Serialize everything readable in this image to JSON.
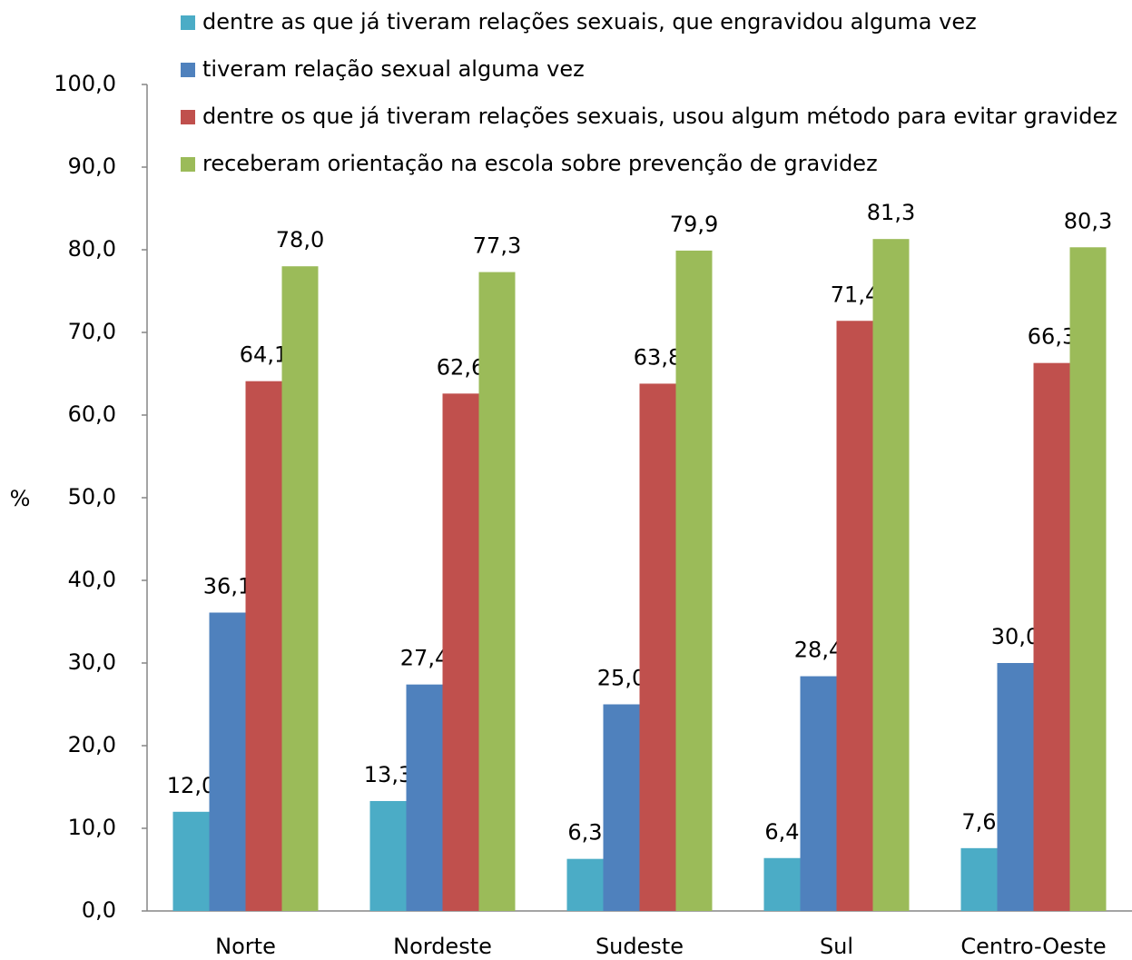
{
  "chart_data": {
    "type": "bar",
    "y_label": "%",
    "categories": [
      "Norte",
      "Nordeste",
      "Sudeste",
      "Sul",
      "Centro-Oeste"
    ],
    "series": [
      {
        "name": "dentre as que já tiveram relações sexuais, que engravidou alguma vez",
        "color": "#4bacc6",
        "values": [
          12.0,
          13.3,
          6.3,
          6.4,
          7.6
        ],
        "value_labels": [
          "12,0",
          "13,3",
          "6,3",
          "6,4",
          "7,6"
        ]
      },
      {
        "name": "tiveram relação sexual alguma vez",
        "color": "#4f81bd",
        "values": [
          36.1,
          27.4,
          25.0,
          28.4,
          30.0
        ],
        "value_labels": [
          "36,1",
          "27,4",
          "25,0",
          "28,4",
          "30,0"
        ]
      },
      {
        "name": "dentre os que já tiveram relações sexuais, usou algum método para evitar gravidez",
        "color": "#c0504d",
        "values": [
          64.1,
          62.6,
          63.8,
          71.4,
          66.3
        ],
        "value_labels": [
          "64,1",
          "62,6",
          "63,8",
          "71,4",
          "66,3"
        ]
      },
      {
        "name": "receberam orientação na escola sobre prevenção de gravidez",
        "color": "#9bbb59",
        "values": [
          78.0,
          77.3,
          79.9,
          81.3,
          80.3
        ],
        "value_labels": [
          "78,0",
          "77,3",
          "79,9",
          "81,3",
          "80,3"
        ]
      }
    ],
    "ylim": [
      0,
      100
    ],
    "yticks": [
      {
        "value": 0,
        "label": "0,0"
      },
      {
        "value": 10,
        "label": "10,0"
      },
      {
        "value": 20,
        "label": "20,0"
      },
      {
        "value": 30,
        "label": "30,0"
      },
      {
        "value": 40,
        "label": "40,0"
      },
      {
        "value": 50,
        "label": "50,0"
      },
      {
        "value": 60,
        "label": "60,0"
      },
      {
        "value": 70,
        "label": "70,0"
      },
      {
        "value": 80,
        "label": "80,0"
      },
      {
        "value": 90,
        "label": "90,0"
      },
      {
        "value": 100,
        "label": "100,0"
      }
    ],
    "legend": "top"
  }
}
